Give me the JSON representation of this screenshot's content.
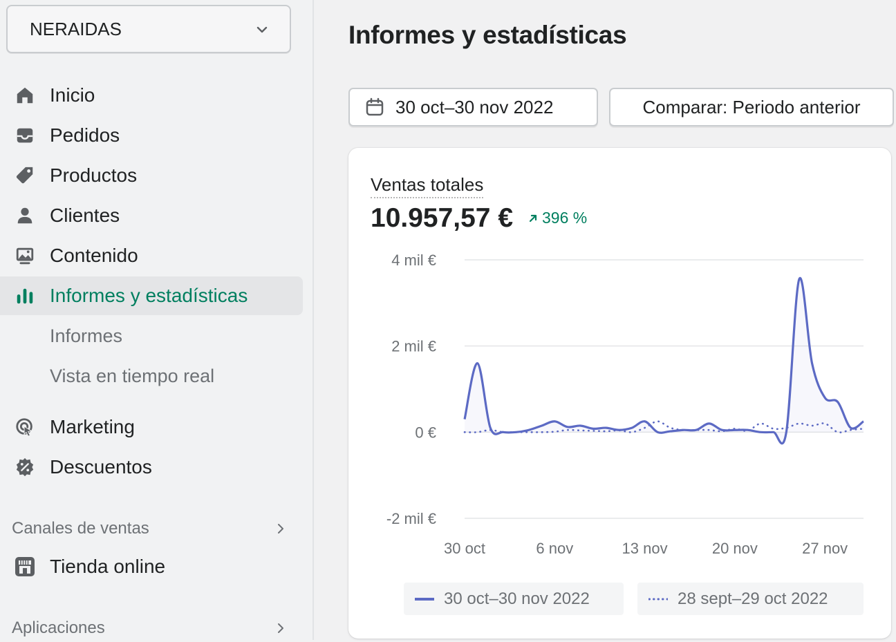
{
  "store": {
    "name": "NERAIDAS"
  },
  "nav": {
    "items": [
      {
        "label": "Inicio",
        "icon": "home-icon"
      },
      {
        "label": "Pedidos",
        "icon": "inbox-icon"
      },
      {
        "label": "Productos",
        "icon": "tag-icon"
      },
      {
        "label": "Clientes",
        "icon": "person-icon"
      },
      {
        "label": "Contenido",
        "icon": "image-icon"
      },
      {
        "label": "Informes y estadísticas",
        "icon": "bar-chart-icon",
        "active": true
      },
      {
        "label": "Marketing",
        "icon": "target-icon"
      },
      {
        "label": "Descuentos",
        "icon": "discount-icon"
      }
    ],
    "sub_items": [
      "Informes",
      "Vista en tiempo real"
    ],
    "sections": {
      "sales_channels": "Canales de ventas",
      "online_store": "Tienda online",
      "apps": "Aplicaciones"
    }
  },
  "page": {
    "title": "Informes y estadísticas",
    "date_range": "30 oct–30 nov 2022",
    "compare": "Comparar: Periodo anterior"
  },
  "card": {
    "metric_label": "Ventas totales",
    "metric_value": "10.957,57 €",
    "change": "396 %"
  },
  "colors": {
    "accent": "#007f5f",
    "series": "#5c6ac4"
  },
  "chart_data": {
    "type": "line",
    "y_ticks": [
      "4 mil €",
      "2 mil €",
      "0 €",
      "-2 mil €"
    ],
    "ylim": [
      -2000,
      4000
    ],
    "x_ticks": [
      "30 oct",
      "6 nov",
      "13 nov",
      "20 nov",
      "27 nov"
    ],
    "x": [
      "30 oct",
      "31 oct",
      "1 nov",
      "2 nov",
      "3 nov",
      "4 nov",
      "5 nov",
      "6 nov",
      "7 nov",
      "8 nov",
      "9 nov",
      "10 nov",
      "11 nov",
      "12 nov",
      "13 nov",
      "14 nov",
      "15 nov",
      "16 nov",
      "17 nov",
      "18 nov",
      "19 nov",
      "20 nov",
      "21 nov",
      "22 nov",
      "23 nov",
      "24 nov",
      "25 nov",
      "26 nov",
      "27 nov",
      "28 nov",
      "29 nov",
      "30 nov"
    ],
    "series": [
      {
        "name": "30 oct–30 nov 2022",
        "style": "solid",
        "values": [
          300,
          1600,
          100,
          0,
          0,
          50,
          150,
          250,
          120,
          150,
          80,
          100,
          50,
          100,
          250,
          0,
          20,
          50,
          50,
          200,
          50,
          50,
          50,
          0,
          0,
          0,
          3550,
          1600,
          800,
          700,
          100,
          250
        ]
      },
      {
        "name": "28 sept–29 oct 2022",
        "style": "dotted",
        "values": [
          0,
          0,
          50,
          0,
          0,
          0,
          0,
          10,
          50,
          40,
          30,
          20,
          40,
          0,
          100,
          250,
          100,
          50,
          50,
          50,
          20,
          80,
          30,
          200,
          80,
          100,
          200,
          150,
          200,
          0,
          50,
          80
        ]
      }
    ]
  }
}
